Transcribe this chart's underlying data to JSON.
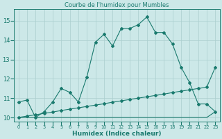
{
  "title": "Courbe de l'humidex pour Mumbles",
  "xlabel": "Humidex (Indice chaleur)",
  "x_values": [
    0,
    1,
    2,
    3,
    4,
    5,
    6,
    7,
    8,
    9,
    10,
    11,
    12,
    13,
    14,
    15,
    16,
    17,
    18,
    19,
    20,
    21,
    22,
    23
  ],
  "line1_y": [
    10.8,
    10.9,
    10.0,
    10.3,
    10.8,
    11.5,
    11.3,
    10.8,
    12.1,
    13.9,
    14.3,
    13.7,
    14.6,
    14.6,
    14.8,
    15.2,
    14.4,
    14.4,
    13.8,
    12.6,
    11.8,
    10.7,
    10.7,
    10.3
  ],
  "line2_y": [
    10.0,
    10.07,
    10.14,
    10.21,
    10.28,
    10.36,
    10.43,
    10.5,
    10.57,
    10.64,
    10.71,
    10.79,
    10.86,
    10.93,
    11.0,
    11.07,
    11.14,
    11.21,
    11.29,
    11.36,
    11.43,
    11.5,
    11.57,
    12.6
  ],
  "line3_y": [
    10.0,
    10.0,
    10.0,
    10.0,
    10.0,
    10.0,
    10.0,
    10.0,
    10.0,
    10.0,
    10.0,
    10.0,
    10.0,
    10.0,
    10.0,
    10.0,
    10.0,
    10.0,
    10.0,
    10.0,
    10.0,
    10.0,
    10.0,
    10.3
  ],
  "line_color": "#1a7a6e",
  "bg_color": "#cce8e8",
  "grid_color": "#aacece",
  "ylim": [
    9.8,
    15.6
  ],
  "yticks": [
    10,
    11,
    12,
    13,
    14,
    15
  ]
}
